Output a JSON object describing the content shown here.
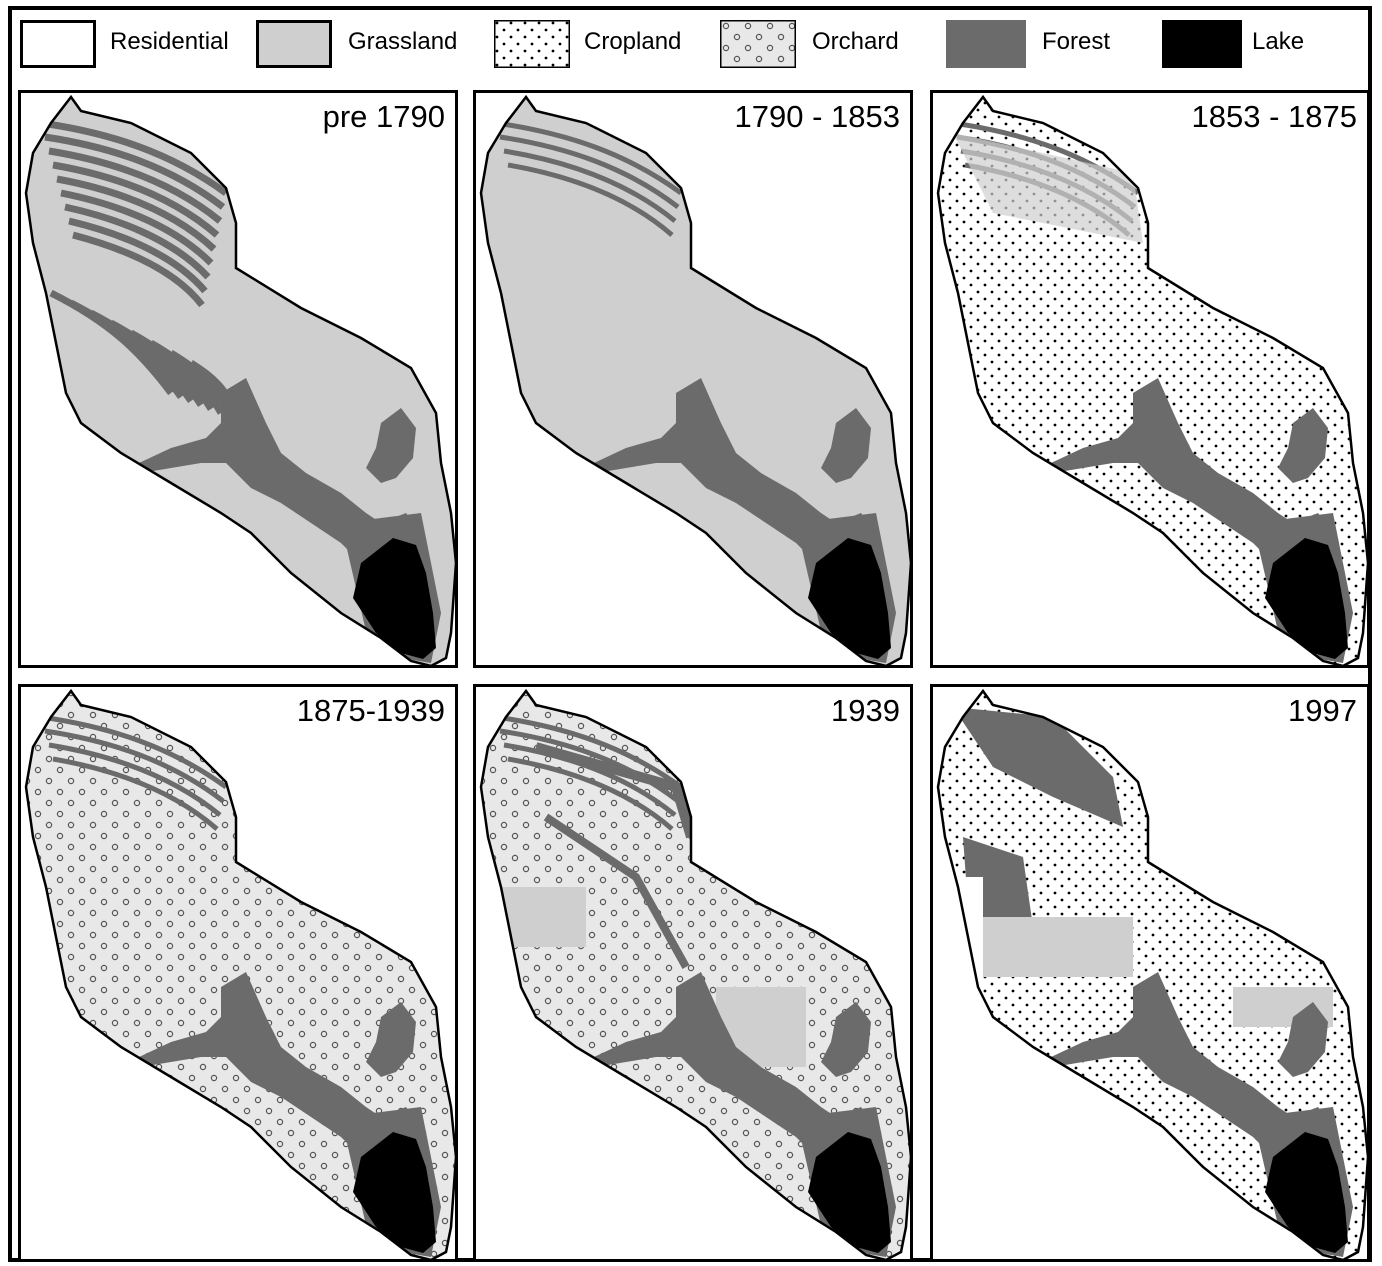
{
  "colors": {
    "residential": "#ffffff",
    "grassland": "#cfcfcf",
    "forest": "#6b6b6b",
    "lake": "#000000",
    "border": "#000000"
  },
  "legend": [
    {
      "key": "residential",
      "label": "Residential",
      "pattern": "white"
    },
    {
      "key": "grassland",
      "label": "Grassland",
      "pattern": "grass"
    },
    {
      "key": "cropland",
      "label": "Cropland",
      "pattern": "dots"
    },
    {
      "key": "orchard",
      "label": "Orchard",
      "pattern": "orchard"
    },
    {
      "key": "forest",
      "label": "Forest",
      "pattern": "forest"
    },
    {
      "key": "lake",
      "label": "Lake",
      "pattern": "lake"
    }
  ],
  "panels": [
    {
      "title": "pre 1790",
      "background": "grass",
      "forest": "heavy"
    },
    {
      "title": "1790 - 1853",
      "background": "grass",
      "forest": "light"
    },
    {
      "title": "1853 - 1875",
      "background": "dots",
      "forest": "light"
    },
    {
      "title": "1875-1939",
      "background": "orchard",
      "forest": "light"
    },
    {
      "title": "1939",
      "background": "orchard",
      "forest": "streams"
    },
    {
      "title": "1997",
      "background": "dots",
      "forest": "modern"
    }
  ]
}
